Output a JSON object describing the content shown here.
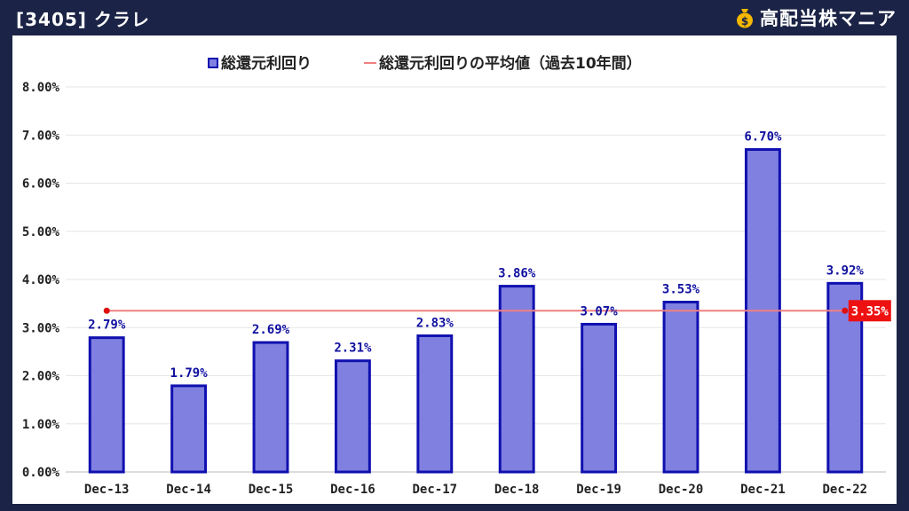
{
  "header": {
    "title": "[3405] クラレ",
    "brand": "高配当株マニア",
    "brand_icon": "money-bag-icon"
  },
  "colors": {
    "background": "#1b2346",
    "bar_fill": "#8080e0",
    "bar_stroke": "#1010b0",
    "bar_label": "#1010a0",
    "average_line": "#f08080",
    "average_marker": "#e01010",
    "average_label_bg": "#ee1111"
  },
  "chart_data": {
    "type": "bar",
    "categories": [
      "Dec-13",
      "Dec-14",
      "Dec-15",
      "Dec-16",
      "Dec-17",
      "Dec-18",
      "Dec-19",
      "Dec-20",
      "Dec-21",
      "Dec-22"
    ],
    "series": [
      {
        "name": "総還元利回り",
        "type": "bar",
        "values": [
          2.79,
          1.79,
          2.69,
          2.31,
          2.83,
          3.86,
          3.07,
          3.53,
          6.7,
          3.92
        ]
      },
      {
        "name": "総還元利回りの平均値（過去10年間）",
        "type": "line",
        "value": 3.35
      }
    ],
    "data_labels": [
      "2.79%",
      "1.79%",
      "2.69%",
      "2.31%",
      "2.83%",
      "3.86%",
      "3.07%",
      "3.53%",
      "6.70%",
      "3.92%"
    ],
    "average_label": "3.35%",
    "yticks": [
      "0.00%",
      "1.00%",
      "2.00%",
      "3.00%",
      "4.00%",
      "5.00%",
      "6.00%",
      "7.00%",
      "8.00%"
    ],
    "ylim": [
      0,
      8
    ],
    "grid": true,
    "legend_position": "top-center",
    "title": "",
    "xlabel": "",
    "ylabel": ""
  }
}
